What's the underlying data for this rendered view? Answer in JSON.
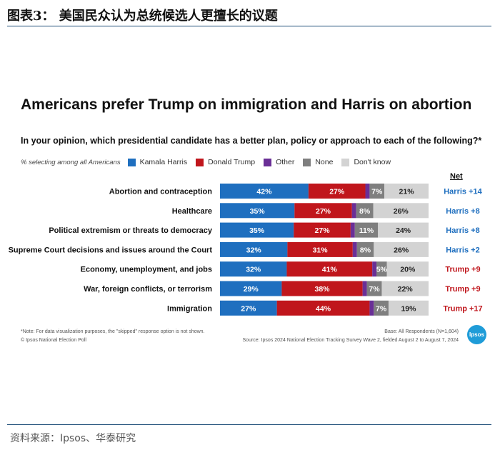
{
  "figure": {
    "title": "图表3：  美国民众认为总统候选人更擅长的议题",
    "source": "资料来源：Ipsos、华泰研究"
  },
  "chart_data": {
    "type": "bar",
    "orientation": "horizontal-stacked",
    "title": "Americans prefer Trump on immigration and Harris on abortion",
    "subtitle": "In your opinion, which presidential candidate has a better plan, policy or approach to each of the following?*",
    "legend_lead": "% selecting among all Americans",
    "legend_placement": "top",
    "net_header": "Net",
    "categories": [
      "Abortion and contraception",
      "Healthcare",
      "Political extremism or threats to democracy",
      "Supreme Court decisions and issues around the Court",
      "Economy, unemployment, and jobs",
      "War, foreign conflicts, or terrorism",
      "Immigration"
    ],
    "series": [
      {
        "name": "Kamala Harris",
        "color": "#1f6fbf",
        "values": [
          42,
          35,
          35,
          32,
          32,
          29,
          27
        ],
        "labels": [
          "42%",
          "35%",
          "35%",
          "32%",
          "32%",
          "29%",
          "27%"
        ]
      },
      {
        "name": "Donald Trump",
        "color": "#c0161c",
        "values": [
          27,
          27,
          27,
          31,
          41,
          38,
          44
        ],
        "labels": [
          "27%",
          "27%",
          "27%",
          "31%",
          "41%",
          "38%",
          "44%"
        ]
      },
      {
        "name": "Other",
        "color": "#6a2f96",
        "values": [
          2,
          2,
          2,
          2,
          2,
          2,
          2
        ],
        "labels": [
          "",
          "",
          "",
          "",
          "",
          "",
          ""
        ]
      },
      {
        "name": "None",
        "color": "#7f7f7f",
        "values": [
          7,
          8,
          11,
          8,
          5,
          7,
          7
        ],
        "labels": [
          "7%",
          "8%",
          "11%",
          "8%",
          "5%",
          "7%",
          "7%"
        ]
      },
      {
        "name": "Don't know",
        "color": "#d3d3d3",
        "values": [
          21,
          26,
          24,
          26,
          20,
          22,
          19
        ],
        "labels": [
          "21%",
          "26%",
          "24%",
          "26%",
          "20%",
          "22%",
          "19%"
        ]
      }
    ],
    "net": [
      {
        "text": "Harris +14",
        "color": "#1f6fbf"
      },
      {
        "text": "Harris +8",
        "color": "#1f6fbf"
      },
      {
        "text": "Harris +8",
        "color": "#1f6fbf"
      },
      {
        "text": "Harris +2",
        "color": "#1f6fbf"
      },
      {
        "text": "Trump +9",
        "color": "#c0161c"
      },
      {
        "text": "Trump +9",
        "color": "#c0161c"
      },
      {
        "text": "Trump +17",
        "color": "#c0161c"
      }
    ],
    "notes": {
      "footnote": "*Note: For data visualization purposes, the \"skipped\" response option is not shown.",
      "credit": "© Ipsos National Election Poll",
      "base": "Base: All Respondents (N=1,604)",
      "source": "Source: Ipsos 2024 National Election Tracking Survey Wave 2, fielded August 2 to August 7, 2024",
      "logo": "Ipsos"
    }
  }
}
